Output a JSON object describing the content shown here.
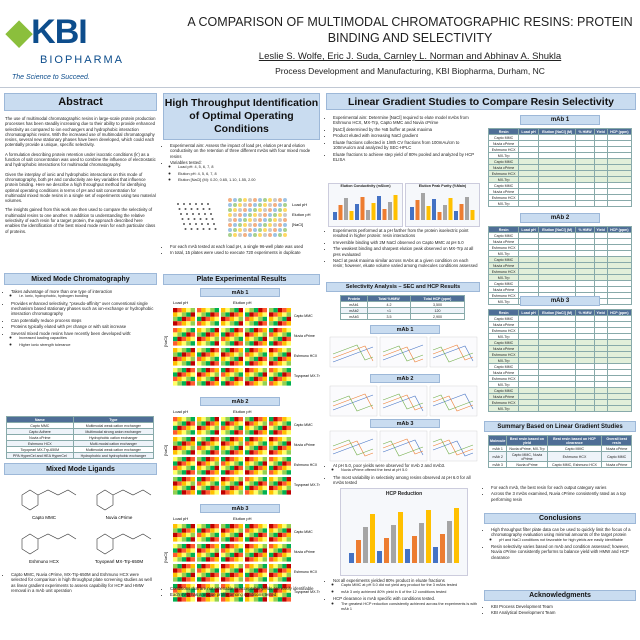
{
  "header": {
    "logo_name": "KBI",
    "logo_sub": "BIOPHARMA",
    "tagline": "The Science to Succeed.",
    "title": "A COMPARISON OF MULTIMODAL CHROMATOGRAPHIC RESINS: PROTEIN BINDING AND SELECTIVITY",
    "authors": "Leslie S. Wolfe, Eric J. Suda, Carnley L. Norman and Abhinav A. Shukla",
    "affiliation": "Process Development and Manufacturing, KBI Biopharma, Durham, NC"
  },
  "abstract": {
    "heading": "Abstract",
    "paragraphs": [
      "The use of multimodal chromatographic resins in large-scale protein production processes has been steadily increasing due to their ability to provide enhanced selectivity as compared to ion exchangers and hydrophobic interaction chromatographic resins. With the increased use of multimodal chromatography resins, several new stationary phases have been developed, which could each potentially provide a unique, specific selectivity.",
      "A formulation describing protein retention under isocratic conditions (k') as a function of salt concentration was used to combine the influence of electrostatic and hydrophobic interactions for multimodal chromatography.",
      "Given the interplay of ionic and hydrophobic interactions on this mode of chromatography, both pH and conductivity are key variables that influence protein binding. Here we describe a high throughput method for identifying optimal operating conditions in terms of pH and salt concentration for multimodal mixed mode resins in a single set of experiments using two material volumes.",
      "The insights gained from this work are then used to compare the selectivity of multimodal resins to one another. In addition to understanding the relative selectivity of each resin for a target protein, the approach described here enables the identification of the best mixed mode resin for each particular class of proteins."
    ]
  },
  "mixed_mode": {
    "heading": "Mixed Mode Chromatography",
    "bullets": [
      {
        "text": "Takes advantage of more than one type of interaction",
        "sub": [
          "i.e. ionic, hydrophobic, hydrogen bonding"
        ]
      },
      {
        "text": "Provides enhanced selectivity, \"pseudo-affinity\" over conventional single mechanism based stationary phases such as ion-exchange or hydrophobic interaction chromatography"
      },
      {
        "text": "Can potentially reduce process steps"
      },
      {
        "text": "Proteins typically eluted with pH change or with salt increase"
      },
      {
        "text": "Several mixed mode resins have recently been developed with:",
        "sub": [
          "Increased loading capacities",
          "Higher ionic strength tolerance"
        ]
      }
    ],
    "table": {
      "header": [
        "Name",
        "Type"
      ],
      "rows": [
        [
          "Capto MMC",
          "Multimodal weak cation exchanger"
        ],
        [
          "Capto Adhere",
          "Multimodal strong anion exchanger"
        ],
        [
          "Nuvia cPrime",
          "Hydrophobic cation exchanger"
        ],
        [
          "Eshmuno HCX",
          "Multi-modal cation exchanger"
        ],
        [
          "Toyopearl MX-Trp-650M",
          "Multimodal weak cation exchanger"
        ],
        [
          "PPA HyperCel and HEA HyperCel",
          "Hydrophobic and hydrophobic exchanger"
        ]
      ]
    }
  },
  "ligands": {
    "heading": "Mixed Mode Ligands",
    "names": [
      "Capto MMC",
      "Nuvia cPrime",
      "Eshmuno HCX",
      "Toyopearl MX-Trp-650M"
    ],
    "bullets": [
      {
        "text": "Capto MMC, Nuvia cPrime, MX-Trp-650M and Eshmuno HCX were selected for comparison in high throughput plate screening studies as well as linear gradient experiments to assess capability for HCP and HMW removal in a mAb unit operation"
      }
    ]
  },
  "htp": {
    "heading": "High Throughput Identification of Optimal Operating Conditions",
    "bullets": [
      {
        "text": "Experimental aim: Assess the impact of load pH, elution pH and elution conductivity on the retention of three different mAbs with four mixed mode resins"
      },
      {
        "text": "Variables tested:",
        "sub": [
          "Load pH: 4, 5, 6, 7, 8",
          "Elution pH: 4, 5, 6, 7, 8",
          "Elution [NaCl] (M): 0.20, 0.65, 1.10, 1.55, 2.00"
        ]
      }
    ],
    "bullets2": [
      {
        "text": "For each mAb tested at each load pH, a single 96-well plate was used"
      },
      {
        "text": "In total, 15 plates were used to execute 720 experiments in duplicate"
      }
    ],
    "legend": [
      "Load pH",
      "Elution pH",
      "[NaCl]"
    ]
  },
  "plate_results": {
    "heading": "Plate Experimental Results",
    "panels": [
      "mAb 1",
      "mAb 2",
      "mAb 3"
    ],
    "x_label": "Load pH",
    "x_label2": "Elution pH",
    "y_label": "[NaCl]",
    "resins": [
      "Capto MMC",
      "Nuvia cPrime",
      "Eshmuno HCX",
      "Toyopearl MX-Trp-650M"
    ],
    "bullets": [
      {
        "text": "Conditions that are not amenable to acceptable yields are easily identifiable"
      },
      {
        "text": "Each mAb has a unique profile among conditions tested"
      }
    ]
  },
  "linear": {
    "heading": "Linear Gradient Studies to Compare Resin Selectivity",
    "bullets": [
      {
        "text": "Experimental aim: Determine [NaCl] required to elute model mAbs from Eshmuno HCX, MX-Trp, Capto MMC and Nuvia cPrime"
      },
      {
        "text": "[NaCl] determined by the %B buffer at peak maxima"
      },
      {
        "text": "Product eluted with increasing NaCl gradient"
      },
      {
        "text": "Eluate fractions collected in 1/8th CV fractions from 100mAu/cm to 100mAu/cm and analyzed by SEC-HPLC"
      },
      {
        "text": "Eluate fractions to achieve step yield of 80% pooled and analyzed by HCP ELISA"
      }
    ],
    "chart_titles": [
      "Elution Conductivity (mS/cm)",
      "Elution Peak Purity (%Main)"
    ],
    "bullets2": [
      {
        "text": "Experiments performed at a pH farther from the protein isoelectric point resulted in higher protein: resin interactions"
      },
      {
        "text": "Irreversible binding with 2M NaCl observed on Capto MMC at pH 5.0"
      },
      {
        "text": "The weakest binding and sharpest elution peak observed on MX-Trp at all pHs evaluated"
      },
      {
        "text": "NaCl at peak maxima similar across mAbs at a given condition on each resin; however, eluate volume varied among molecules conditions assessed"
      }
    ],
    "selectivity": {
      "heading": "Selectivity Analysis – SEC and HCP Results",
      "table": {
        "header": [
          "Protein",
          "Total %HMW",
          "Total HCP (ppm)"
        ],
        "rows": [
          [
            "mAb1",
            "4.2",
            "3,500"
          ],
          [
            "mAb2",
            "<1",
            "120"
          ],
          [
            "mAb3",
            "3.5",
            "2,900"
          ]
        ]
      },
      "panels": [
        "mAb 1",
        "mAb 2",
        "mAb 3"
      ]
    },
    "bullets3": [
      {
        "text": "At pH 5.0, poor yields were observed for mAb 2 and mAb3.",
        "sub": [
          "Nuvia cPrime offered the best at pH 5.0"
        ]
      },
      {
        "text": "The most variability in selectivity among resins observed at pH 6.0 for all mAbs tested"
      }
    ],
    "hcp_title": "HCP Reduction",
    "bullets4": [
      {
        "text": "Not all experiments yielded 80% product in eluate fractions",
        "sub": [
          "Capto MMC at pH 5.0 did not yield any product for the 3 mAbs tested",
          "mAb 3 only achieved 80% yield in 6 of the 12 conditions tested"
        ]
      },
      {
        "text": "HCP clearance is mAb specific with conditions tested.",
        "sub": [
          "The greatest HCP reduction consistently achieved across the experiments is with mAb 1"
        ]
      }
    ]
  },
  "tables": {
    "panels": [
      "mAb 1",
      "mAb 2",
      "mAb 3"
    ],
    "header": [
      "Resin",
      "Load pH",
      "Elution [NaCl] (M)",
      "% HMW",
      "Yield",
      "HCP (ppm)"
    ],
    "rows": [
      [
        "Capto MMC"
      ],
      [
        "Nuvia cPrime"
      ],
      [
        "Eshmuno HCX"
      ],
      [
        "MX-Trp"
      ]
    ]
  },
  "summary": {
    "heading": "Summary Based on Linear Gradient Studies",
    "table": {
      "header": [
        "Molecule",
        "Best resin based on yield",
        "Best resin based on HCP clearance",
        "Overall best resin"
      ],
      "rows": [
        [
          "mAb 1",
          "Nuvia cPrime, MX-Trp",
          "Capto MMC",
          "Nuvia cPrime"
        ],
        [
          "mAb 2",
          "Capto MMC, Nuvia cPrime",
          "Eshmuno HCX",
          "Capto MMC"
        ],
        [
          "mAb 3",
          "Nuvia cPrime",
          "Capto MMC, Eshmuno HCX",
          "Nuvia cPrime"
        ]
      ]
    },
    "bullets": [
      {
        "text": "For each mAb, the best resin for each output category varies"
      },
      {
        "text": "Across the 3 mAbs examined, Nuvia cPrime consistently rated as a top performing resin"
      }
    ]
  },
  "conclusions": {
    "heading": "Conclusions",
    "bullets": [
      {
        "text": "High throughput filter plate data can be used to quickly limit the focus of a chromatography evaluation using minimal amounts of the target protein",
        "sub": [
          "pH and NaCl conditions not favorable for high yields are easily identifiable"
        ]
      },
      {
        "text": "Resin selectivity varies based on mAb and condition assessed; however, Nuvia cPrime consistently performs to balance yield with HMW and HCP clearance"
      }
    ]
  },
  "acknowledgments": {
    "heading": "Acknowledgments",
    "bullets": [
      {
        "text": "KBI Process Development Team"
      },
      {
        "text": "KBI Analytical Development Team"
      }
    ]
  }
}
